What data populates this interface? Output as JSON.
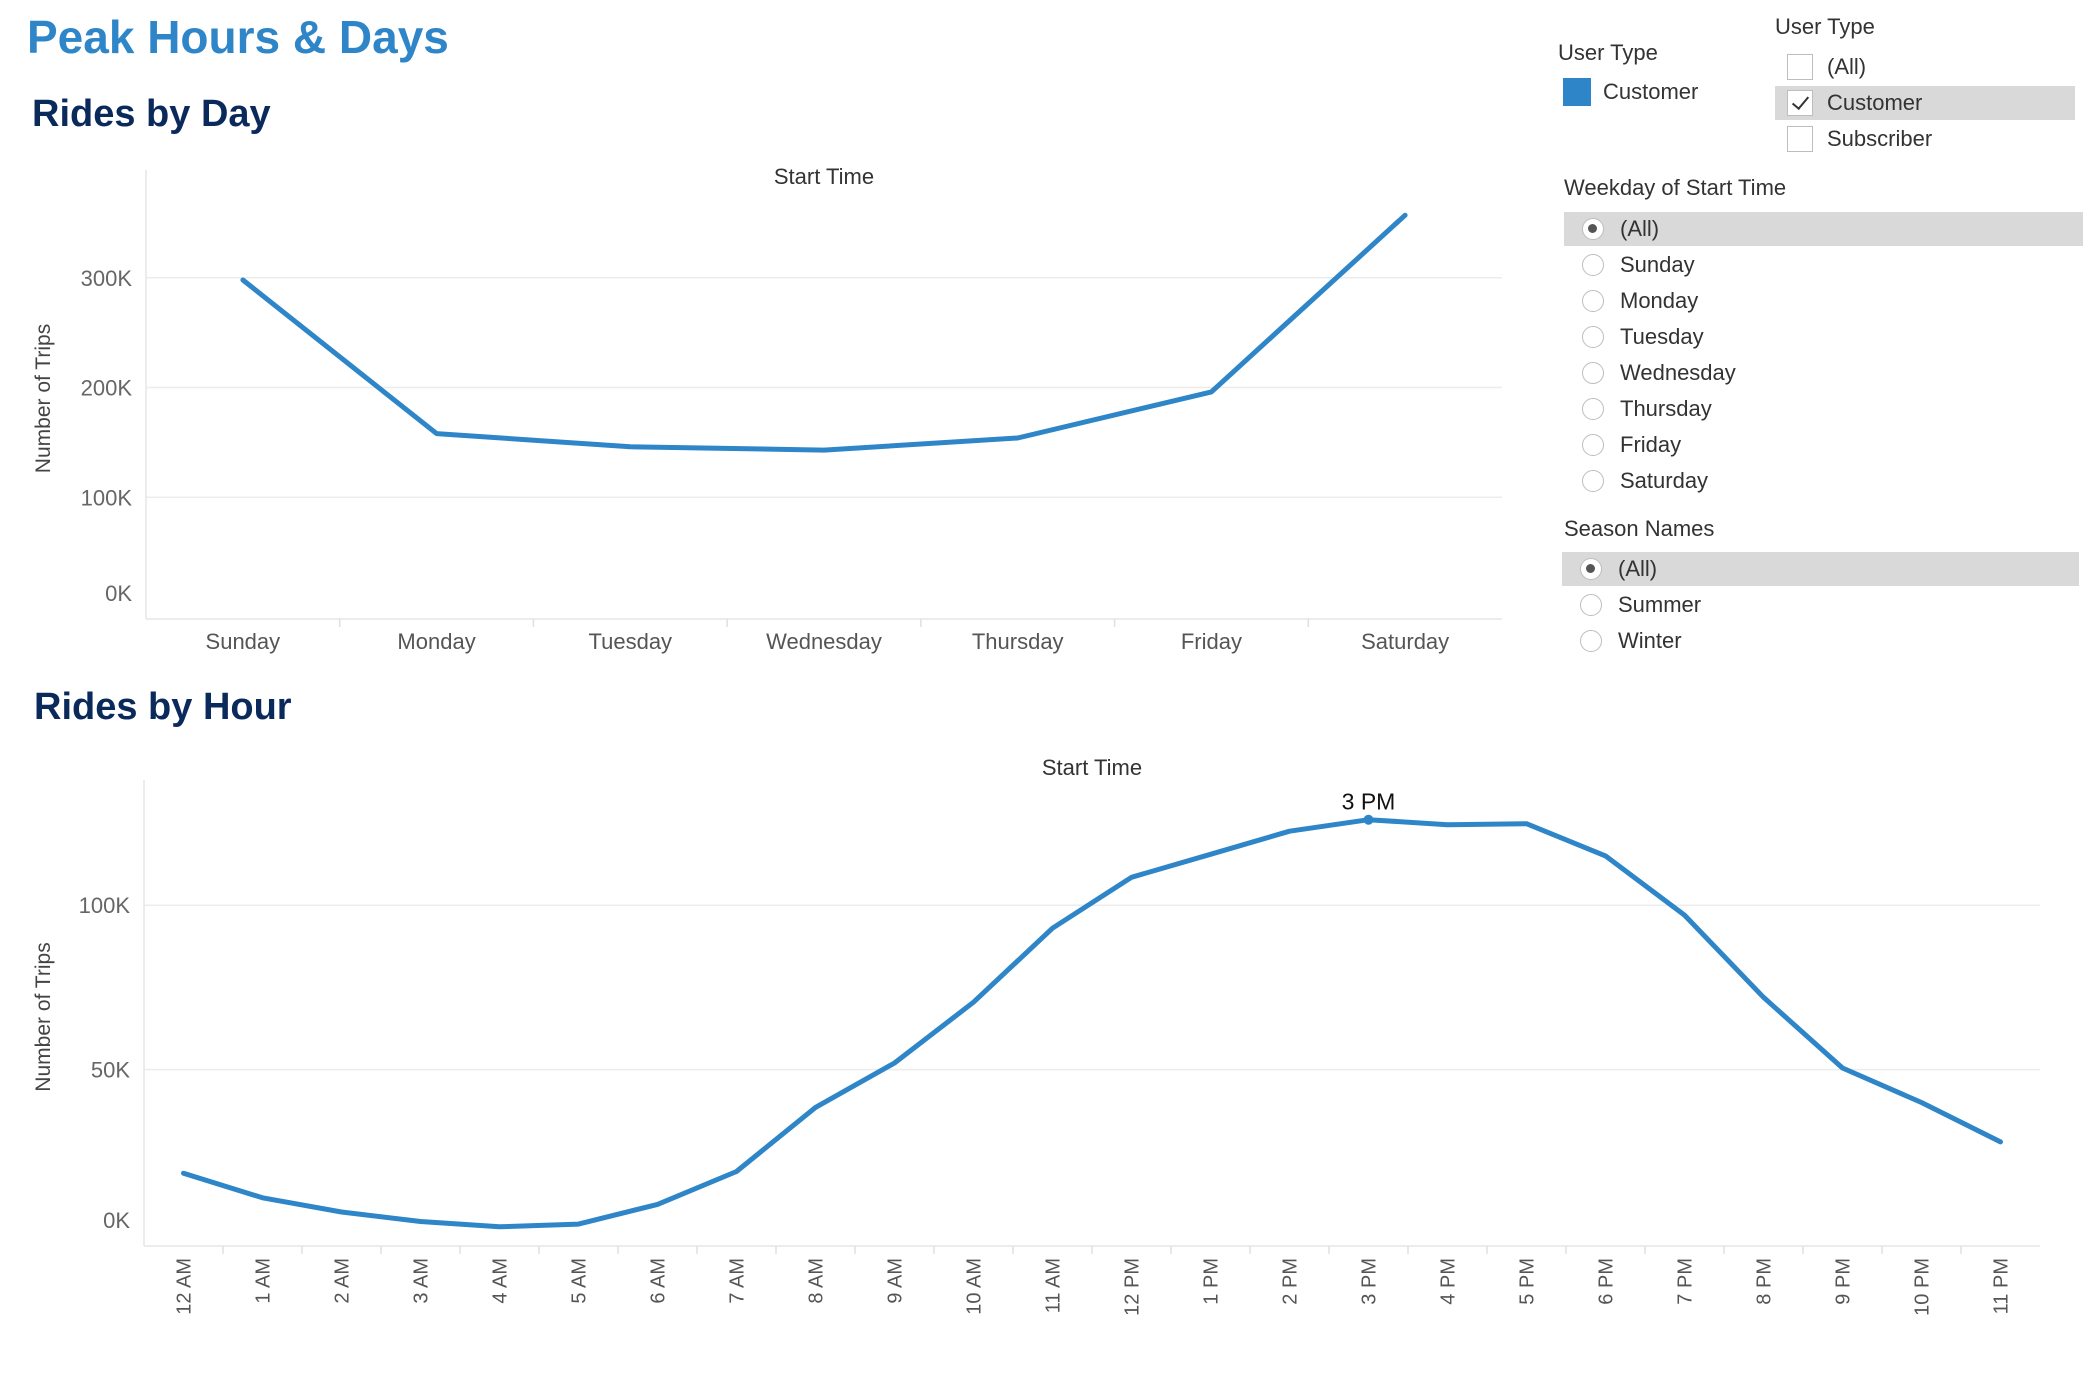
{
  "page": {
    "title": "Peak Hours & Days"
  },
  "colors": {
    "series": "#2e86c8",
    "title": "#2e86c8",
    "section_title": "#0b2a5c",
    "grid": "#ececec",
    "selected_row": "#d9d9d9"
  },
  "day_chart": {
    "heading": "Rides by Day"
  },
  "hour_chart": {
    "heading": "Rides by Hour"
  },
  "chart_data": [
    {
      "type": "line",
      "title": "Start Time",
      "xlabel": "",
      "ylabel": "Number of Trips",
      "categories": [
        "Sunday",
        "Monday",
        "Tuesday",
        "Wednesday",
        "Thursday",
        "Friday",
        "Saturday"
      ],
      "values": [
        298000,
        158000,
        146000,
        143000,
        154000,
        196000,
        357000
      ],
      "ylim": [
        0,
        380000
      ],
      "yticks": [
        0,
        100000,
        200000,
        300000
      ],
      "ytick_labels": [
        "0K",
        "100K",
        "200K",
        "300K"
      ],
      "grid": true
    },
    {
      "type": "line",
      "title": "Start Time",
      "xlabel": "",
      "ylabel": "Number of Trips",
      "categories": [
        "12 AM",
        "1 AM",
        "2 AM",
        "3 AM",
        "4 AM",
        "5 AM",
        "6 AM",
        "7 AM",
        "8 AM",
        "9 AM",
        "10 AM",
        "11 AM",
        "12 PM",
        "1 PM",
        "2 PM",
        "3 PM",
        "4 PM",
        "5 PM",
        "6 PM",
        "7 PM",
        "8 PM",
        "9 PM",
        "10 PM",
        "11 PM"
      ],
      "values": [
        18500,
        11000,
        6700,
        3800,
        2200,
        3000,
        9000,
        19000,
        38500,
        52000,
        70500,
        93000,
        108500,
        115500,
        122500,
        126000,
        124500,
        124800,
        115000,
        97000,
        72000,
        50500,
        40000,
        28000
      ],
      "ylim": [
        0,
        132000
      ],
      "yticks": [
        0,
        50000,
        100000
      ],
      "ytick_labels": [
        "0K",
        "50K",
        "100K"
      ],
      "grid": true,
      "annotations": [
        {
          "category": "3 PM",
          "text": "3 PM"
        }
      ]
    }
  ],
  "legend": {
    "title": "User Type",
    "items": [
      {
        "label": "Customer",
        "color": "#2e86c8"
      }
    ]
  },
  "filters": {
    "user_type": {
      "title": "User Type",
      "options": [
        {
          "label": "(All)",
          "checked": false
        },
        {
          "label": "Customer",
          "checked": true
        },
        {
          "label": "Subscriber",
          "checked": false
        }
      ]
    },
    "weekday": {
      "title": "Weekday of Start Time",
      "options": [
        "(All)",
        "Sunday",
        "Monday",
        "Tuesday",
        "Wednesday",
        "Thursday",
        "Friday",
        "Saturday"
      ],
      "selected": "(All)"
    },
    "season": {
      "title": "Season Names",
      "options": [
        "(All)",
        "Summer",
        "Winter"
      ],
      "selected": "(All)"
    }
  }
}
